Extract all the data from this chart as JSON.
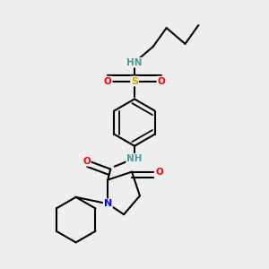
{
  "background_color": "#eeeeee",
  "atom_colors": {
    "C": "#000000",
    "N": "#0000ff",
    "O": "#ff0000",
    "S": "#ccaa00",
    "HN": "#4a9a9a"
  },
  "bond_color": "#000000",
  "bond_width": 1.5
}
